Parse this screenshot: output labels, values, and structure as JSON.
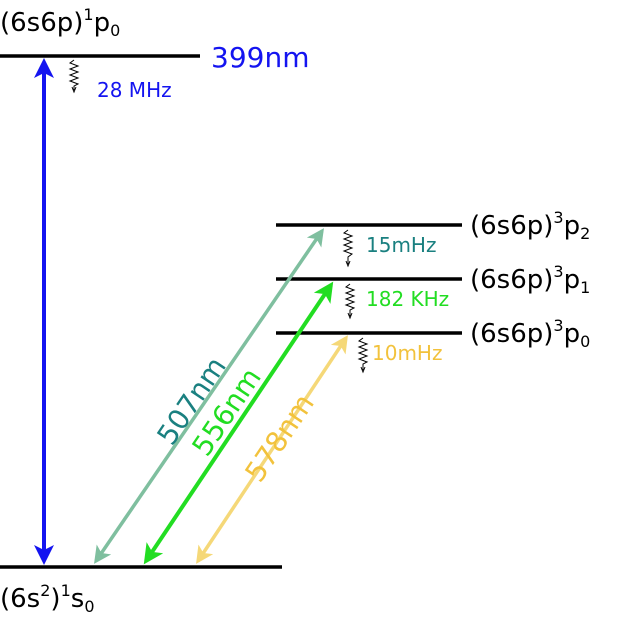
{
  "levels": {
    "p1_0": {
      "label_main": "(6s6p)",
      "label_sup": "1",
      "label_base": "p",
      "label_sub": "0"
    },
    "p3_2": {
      "label_main": "(6s6p)",
      "label_sup": "3",
      "label_base": "p",
      "label_sub": "2"
    },
    "p3_1": {
      "label_main": "(6s6p)",
      "label_sup": "3",
      "label_base": "p",
      "label_sub": "1"
    },
    "p3_0": {
      "label_main": "(6s6p)",
      "label_sup": "3",
      "label_base": "p",
      "label_sub": "0"
    },
    "ground": {
      "label_main": "(6s",
      "label_sup_inner": "2",
      "label_close": ")",
      "label_sup": "1",
      "label_base": "s",
      "label_sub": "0"
    }
  },
  "transitions": {
    "t399": {
      "wavelength": "399nm",
      "linewidth": "28 MHz",
      "color": "#1414f0"
    },
    "t507": {
      "wavelength": "507nm",
      "linewidth": "15mHz",
      "color": "#7fbf9f",
      "label_color": "#1a8080"
    },
    "t556": {
      "wavelength": "556nm",
      "linewidth": "182 KHz",
      "color": "#22dd22"
    },
    "t578": {
      "wavelength": "578nm",
      "linewidth": "10mHz",
      "color": "#f5d878",
      "label_color": "#f2c23c"
    }
  },
  "colors": {
    "line": "#000000"
  }
}
